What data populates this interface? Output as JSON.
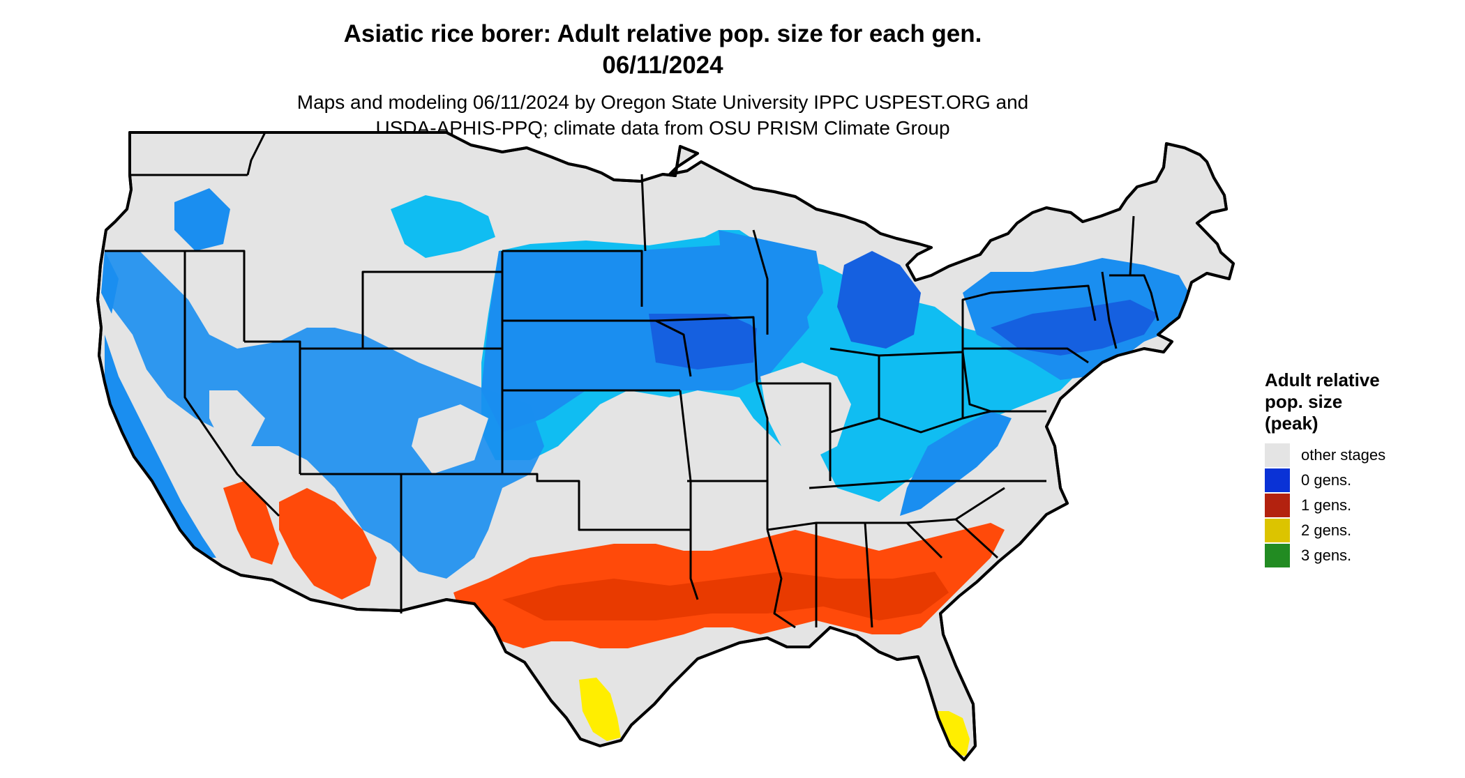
{
  "title": {
    "line1": "Asiatic rice borer: Adult relative pop. size for each gen.",
    "line2": "06/11/2024"
  },
  "subtitle": {
    "line1": "Maps and modeling 06/11/2024 by Oregon State University IPPC USPEST.ORG and",
    "line2": "USDA-APHIS-PPQ; climate data from OSU PRISM Climate Group"
  },
  "legend": {
    "title_lines": [
      "Adult relative",
      "pop. size",
      "(peak)"
    ],
    "items": [
      {
        "label": "other stages",
        "color": "#e4e4e4"
      },
      {
        "label": "0 gens.",
        "color": "#0a32d6"
      },
      {
        "label": "1 gens.",
        "color": "#b3220f"
      },
      {
        "label": "2 gens.",
        "color": "#dcc400"
      },
      {
        "label": "3 gens.",
        "color": "#228b22"
      }
    ]
  },
  "map": {
    "colors": {
      "land": "#e4e4e4",
      "light_blue": "#10bdf2",
      "mid_blue": "#1a8ef0",
      "dark_blue": "#1560e0",
      "orange_red": "#ff4a0a",
      "dark_red": "#e83a00",
      "yellow": "#ffee00",
      "border": "#000000"
    }
  }
}
